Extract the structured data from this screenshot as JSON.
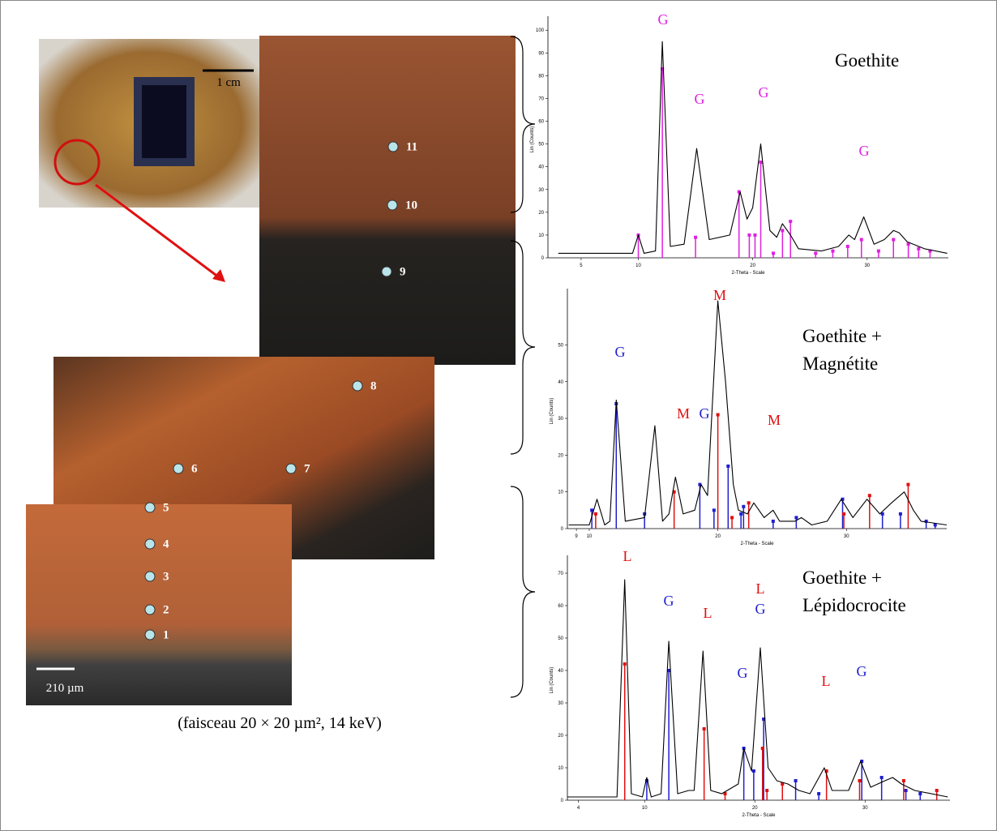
{
  "photo": {
    "scale_bar_top": "1 cm",
    "scale_bar_bottom": "210 µm",
    "points": [
      "1",
      "2",
      "3",
      "4",
      "5",
      "6",
      "7",
      "8",
      "9",
      "10",
      "11"
    ],
    "caption": "(faisceau 20 × 20 µm², 14 keV)"
  },
  "chart_data": [
    {
      "type": "line",
      "label": [
        "Goethite"
      ],
      "y_label": "Lin (Counts)",
      "x_label": "2-Theta - Scale",
      "color": "#000000",
      "xlim": [
        2.1,
        37.1
      ],
      "xticks": [
        5,
        10,
        20,
        30
      ],
      "ylim": [
        0,
        104
      ],
      "yticks": [
        0,
        10,
        20,
        30,
        40,
        50,
        60,
        70,
        80,
        90,
        100
      ],
      "x": [
        3,
        9.5,
        10,
        10.5,
        11.5,
        12.1,
        12.8,
        14,
        15.1,
        16.2,
        18,
        18.9,
        19.5,
        20,
        20.7,
        21.5,
        22.1,
        22.6,
        23.3,
        24,
        26,
        27.5,
        28.4,
        28.9,
        29.7,
        30.6,
        31.5,
        32.3,
        32.8,
        33.5,
        35,
        37
      ],
      "values": [
        2,
        2,
        10,
        2,
        3,
        95,
        5,
        6,
        48,
        8,
        10,
        29,
        17,
        22,
        50,
        12,
        9,
        15,
        10,
        4,
        3,
        5,
        10,
        8,
        18,
        6,
        8,
        12,
        11,
        7,
        4,
        2
      ],
      "references": [
        {
          "color": "#e020e0",
          "x": [
            10,
            12.1,
            15,
            18.8,
            19.7,
            20.2,
            20.7,
            21.8,
            22.6,
            23.3,
            25.5,
            27,
            28.3,
            29.5,
            31,
            32.3,
            33.6,
            34.5,
            35.5
          ],
          "values": [
            10,
            83,
            9,
            29,
            10,
            10,
            42,
            2,
            12,
            16,
            2,
            3,
            5,
            8,
            3,
            8,
            6,
            4,
            3
          ]
        }
      ],
      "annotations": [
        {
          "text": "G",
          "color": "#e020e0"
        },
        {
          "text": "G",
          "color": "#e020e0"
        },
        {
          "text": "G",
          "color": "#e020e0"
        },
        {
          "text": "G",
          "color": "#e020e0"
        }
      ]
    },
    {
      "type": "line",
      "label": [
        "Goethite +",
        "Magnétite"
      ],
      "y_label": "Lin (Counts)",
      "x_label": "2-Theta - Scale",
      "color": "#000000",
      "xlim": [
        8.3,
        37.8
      ],
      "xticks": [
        9,
        10,
        20,
        30
      ],
      "ylim": [
        0,
        64
      ],
      "yticks": [
        0,
        10,
        20,
        30,
        40,
        50
      ],
      "x": [
        8.4,
        10,
        10.6,
        11.2,
        11.6,
        12.1,
        12.8,
        14.3,
        15.1,
        15.7,
        16.2,
        16.7,
        17.3,
        18.2,
        18.7,
        19.2,
        20,
        20.6,
        21.2,
        21.6,
        22.3,
        22.8,
        23.6,
        24.3,
        24.8,
        26,
        26.5,
        27.3,
        28.5,
        29.6,
        30.5,
        31.6,
        32.6,
        33.5,
        34.5,
        35.2,
        35.8,
        37.8
      ],
      "values": [
        1,
        1,
        8,
        1,
        2,
        35,
        2,
        3,
        28,
        2,
        4,
        14,
        4,
        5,
        12,
        9,
        62,
        40,
        12,
        5,
        4,
        7,
        3,
        5,
        2,
        2,
        3,
        1,
        2,
        8,
        3,
        8,
        4,
        7,
        10,
        5,
        2,
        1
      ],
      "references": [
        {
          "color": "#1f1fd0",
          "x": [
            10.2,
            12.1,
            14.3,
            18.6,
            19.7,
            20.8,
            21.8,
            22,
            24.3,
            26.1,
            29.7,
            32.8,
            34.2,
            36.2,
            36.9
          ],
          "values": [
            5,
            34,
            4,
            12,
            5,
            17,
            4,
            6,
            2,
            3,
            8,
            4,
            4,
            2,
            1
          ]
        },
        {
          "color": "#e01010",
          "x": [
            10.5,
            16.6,
            20,
            21.1,
            22.4,
            29.8,
            31.8,
            34.8
          ],
          "values": [
            4,
            10,
            31,
            3,
            7,
            4,
            9,
            12
          ]
        }
      ],
      "annotations": [
        {
          "text": "M",
          "color": "#e01010"
        },
        {
          "text": "G",
          "color": "#1f1fd0"
        },
        {
          "text": "M",
          "color": "#e01010"
        },
        {
          "text": "G",
          "color": "#1f1fd0"
        },
        {
          "text": "M",
          "color": "#e01010"
        }
      ]
    },
    {
      "type": "line",
      "label": [
        "Goethite +",
        "Lépidocrocite"
      ],
      "y_label": "Lin (Counts)",
      "x_label": "2-Theta - Scale",
      "color": "#000000",
      "xlim": [
        3,
        37.7
      ],
      "xticks": [
        4,
        10,
        20,
        30
      ],
      "ylim": [
        0,
        74
      ],
      "yticks": [
        0,
        10,
        20,
        30,
        40,
        50,
        60,
        70
      ],
      "x": [
        3,
        7.5,
        8.2,
        8.8,
        9.8,
        10.2,
        10.6,
        11.5,
        12.2,
        13,
        14,
        14.5,
        15.3,
        16,
        17,
        18.5,
        19,
        19.7,
        20.5,
        21.2,
        22,
        23,
        24,
        25,
        26.3,
        27,
        28.5,
        29.6,
        30.5,
        31.8,
        32.5,
        33.3,
        34.5,
        37.5
      ],
      "values": [
        1,
        1,
        68,
        2,
        1,
        7,
        1,
        2,
        49,
        2,
        3,
        3,
        46,
        3,
        2,
        5,
        16,
        9,
        47,
        10,
        6,
        5,
        3,
        2,
        10,
        3,
        3,
        12,
        4,
        6,
        7,
        5,
        3,
        1
      ],
      "references": [
        {
          "color": "#1f1fd0",
          "x": [
            10.2,
            12.2,
            19,
            19.9,
            20.8,
            23.7,
            25.8,
            29.7,
            31.5,
            33.7,
            35
          ],
          "values": [
            6,
            40,
            16,
            9,
            25,
            6,
            2,
            12,
            7,
            3,
            2
          ]
        },
        {
          "color": "#e01010",
          "x": [
            8.2,
            15.4,
            17.3,
            20.7,
            21.1,
            22.5,
            26.5,
            29.5,
            33.5,
            36.5
          ],
          "values": [
            42,
            22,
            2,
            16,
            3,
            5,
            9,
            6,
            6,
            3
          ]
        }
      ],
      "annotations": [
        {
          "text": "L",
          "color": "#e01010"
        },
        {
          "text": "G",
          "color": "#1f1fd0"
        },
        {
          "text": "L",
          "color": "#e01010"
        },
        {
          "text": "L",
          "color": "#e01010"
        },
        {
          "text": "G",
          "color": "#1f1fd0"
        },
        {
          "text": "G",
          "color": "#1f1fd0"
        },
        {
          "text": "L",
          "color": "#e01010"
        },
        {
          "text": "G",
          "color": "#1f1fd0"
        }
      ]
    }
  ]
}
